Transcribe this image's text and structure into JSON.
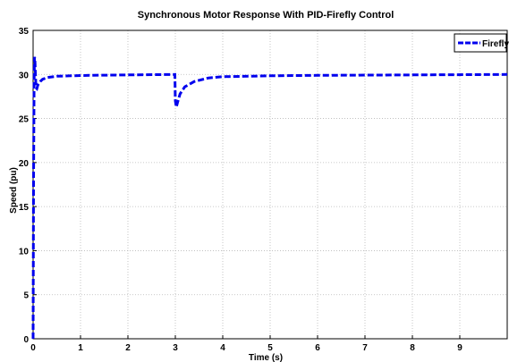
{
  "chart_data": {
    "type": "line",
    "title": "Synchronous Motor Response With PID-Firefly Control",
    "xlabel": "Time (s)",
    "ylabel": "Speed (pu)",
    "xlim": [
      0,
      10
    ],
    "ylim": [
      0,
      35
    ],
    "xticks": [
      "0",
      "1",
      "2",
      "3",
      "4",
      "5",
      "6",
      "7",
      "8",
      "9"
    ],
    "yticks": [
      "0",
      "5",
      "10",
      "15",
      "20",
      "25",
      "30",
      "35"
    ],
    "grid": true,
    "legend_position": "top-right",
    "series": [
      {
        "name": "Firefly",
        "color": "#0000ee",
        "line_style": "dashed",
        "x": [
          0,
          0.01,
          0.02,
          0.03,
          0.04,
          0.06,
          0.08,
          0.1,
          0.15,
          0.2,
          0.3,
          0.5,
          0.8,
          1.2,
          2.0,
          2.99,
          3.0,
          3.02,
          3.05,
          3.1,
          3.2,
          3.4,
          3.7,
          4.0,
          5.0,
          6.0,
          8.0,
          10.0
        ],
        "values": [
          0,
          18,
          29,
          32,
          31.5,
          28.5,
          28.4,
          28.8,
          29.2,
          29.45,
          29.65,
          29.8,
          29.85,
          29.9,
          29.95,
          30,
          27,
          26.3,
          26.9,
          27.8,
          28.6,
          29.2,
          29.6,
          29.75,
          29.85,
          29.9,
          29.95,
          30
        ]
      }
    ]
  }
}
